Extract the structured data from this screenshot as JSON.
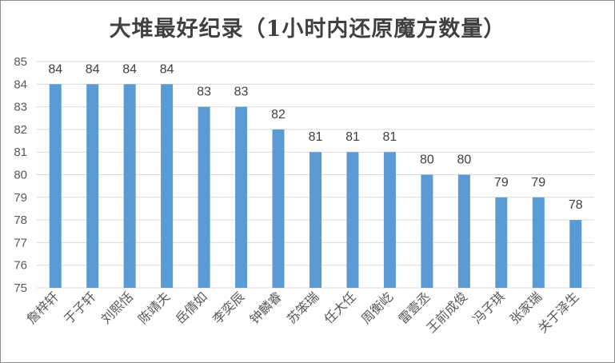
{
  "chart_data": {
    "type": "bar",
    "title": "大堆最好纪录（1小时内还原魔方数量）",
    "categories": [
      "詹梓轩",
      "于子轩",
      "刘熙恬",
      "陈靖夫",
      "岳倩如",
      "李奕辰",
      "钟麟睿",
      "苏笨瑞",
      "任大任",
      "周衡屹",
      "雷壹丞",
      "王前成俊",
      "冯子琪",
      "张家瑞",
      "关于泽生"
    ],
    "values": [
      84,
      84,
      84,
      84,
      83,
      83,
      82,
      81,
      81,
      81,
      80,
      80,
      79,
      79,
      78
    ],
    "ylim": [
      75,
      85
    ],
    "yticks": [
      75,
      76,
      77,
      78,
      79,
      80,
      81,
      82,
      83,
      84,
      85
    ],
    "xlabel": "",
    "ylabel": "",
    "grid": true,
    "data_labels": true,
    "bar_color": "#5b9bd5",
    "grid_color": "#d9d9d9"
  }
}
